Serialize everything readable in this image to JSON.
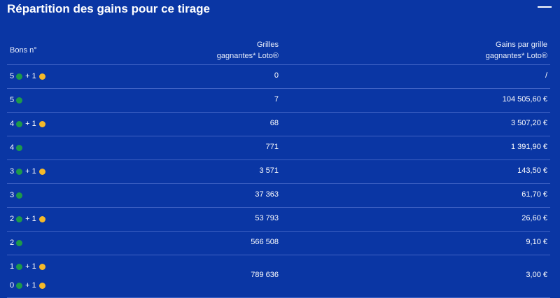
{
  "header": {
    "title": "Répartition des gains pour ce tirage",
    "collapse_icon": "minus-icon"
  },
  "table": {
    "columns": {
      "bons": "Bons n°",
      "grilles_line1": "Grilles",
      "grilles_line2": "gagnantes* Loto®",
      "gains_line1": "Gains par grille",
      "gains_line2": "gagnantes* Loto®"
    },
    "colors": {
      "green_ball": "#1e9a4a",
      "yellow_ball": "#f4b92a",
      "background": "#0a36a4"
    },
    "rows": [
      {
        "n": "5",
        "plus": "+ 1",
        "grilles": "0",
        "gains": "/"
      },
      {
        "n": "5",
        "plus": "",
        "grilles": "7",
        "gains": "104 505,60 €"
      },
      {
        "n": "4",
        "plus": "+ 1",
        "grilles": "68",
        "gains": "3 507,20 €"
      },
      {
        "n": "4",
        "plus": "",
        "grilles": "771",
        "gains": "1 391,90 €"
      },
      {
        "n": "3",
        "plus": "+ 1",
        "grilles": "3 571",
        "gains": "143,50 €"
      },
      {
        "n": "3",
        "plus": "",
        "grilles": "37 363",
        "gains": "61,70 €"
      },
      {
        "n": "2",
        "plus": "+ 1",
        "grilles": "53 793",
        "gains": "26,60 €"
      },
      {
        "n": "2",
        "plus": "",
        "grilles": "566 508",
        "gains": "9,10 €"
      }
    ],
    "last_row": {
      "combos": [
        {
          "n": "1",
          "plus": "+ 1"
        },
        {
          "n": "0",
          "plus": "+ 1"
        }
      ],
      "grilles": "789 636",
      "gains": "3,00 €"
    }
  }
}
